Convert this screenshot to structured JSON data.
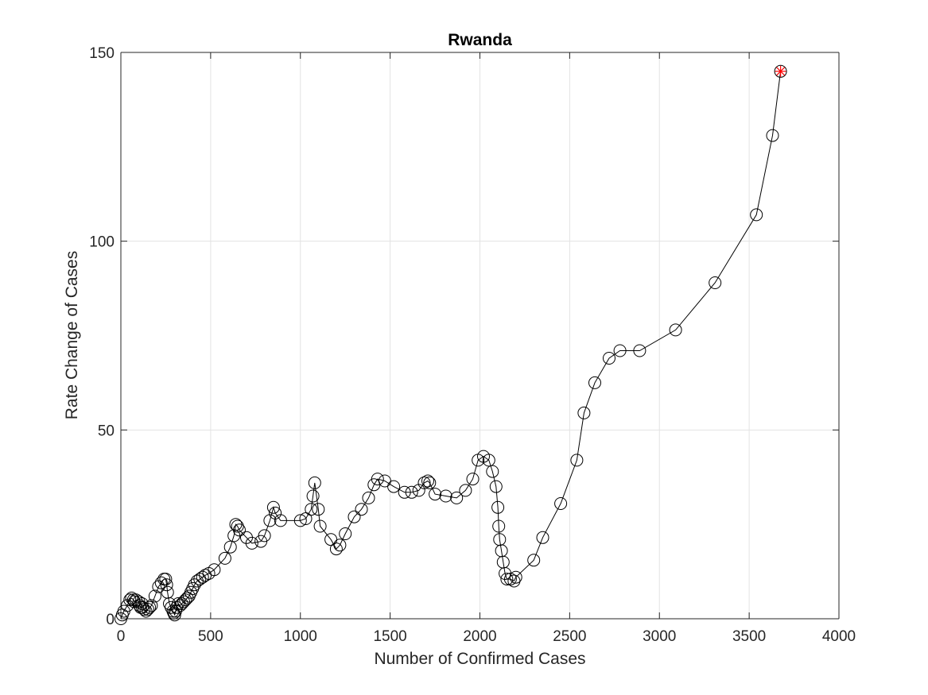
{
  "chart_data": {
    "type": "line",
    "title": "Rwanda",
    "xlabel": "Number of Confirmed Cases",
    "ylabel": "Rate Change of Cases",
    "xlim": [
      0,
      4000
    ],
    "ylim": [
      0,
      150
    ],
    "xticks": [
      "0",
      "500",
      "1000",
      "1500",
      "2000",
      "2500",
      "3000",
      "3500",
      "4000"
    ],
    "yticks": [
      "0",
      "50",
      "100",
      "150"
    ],
    "grid": true,
    "series": [
      {
        "marker": "circle",
        "line_color": "#000000",
        "x": [
          0,
          8,
          17,
          36,
          50,
          60,
          70,
          75,
          84,
          100,
          105,
          110,
          118,
          120,
          130,
          140,
          150,
          160,
          170,
          190,
          210,
          225,
          240,
          250,
          255,
          260,
          270,
          280,
          290,
          295,
          300,
          305,
          310,
          320,
          330,
          340,
          350,
          360,
          370,
          380,
          390,
          400,
          410,
          425,
          440,
          455,
          470,
          490,
          520,
          580,
          610,
          630,
          640,
          650,
          660,
          700,
          730,
          780,
          800,
          830,
          850,
          860,
          890,
          1000,
          1030,
          1060,
          1070,
          1080,
          1100,
          1110,
          1170,
          1200,
          1220,
          1250,
          1300,
          1340,
          1380,
          1410,
          1430,
          1470,
          1520,
          1580,
          1620,
          1660,
          1690,
          1710,
          1720,
          1750,
          1810,
          1870,
          1920,
          1960,
          1990,
          2020,
          2050,
          2070,
          2090,
          2100,
          2105,
          2110,
          2120,
          2130,
          2140,
          2150,
          2170,
          2190,
          2200,
          2300,
          2350,
          2450,
          2540,
          2580,
          2640,
          2720,
          2780,
          2890,
          3090,
          3310,
          3540,
          3630,
          3675
        ],
        "y": [
          0,
          1,
          2,
          3.5,
          5,
          5.5,
          5,
          4.5,
          5,
          4.5,
          3.5,
          3,
          4,
          3,
          2.5,
          2,
          2.5,
          3,
          3.5,
          6,
          8.5,
          9.5,
          10.5,
          10.5,
          9,
          7,
          4,
          3,
          2,
          1.5,
          1,
          2,
          3,
          4,
          3.5,
          4,
          4.5,
          5,
          5.5,
          6,
          7,
          8,
          9,
          10,
          10.5,
          11,
          11.5,
          12,
          13,
          16,
          19,
          22,
          25,
          24.5,
          23.5,
          21.5,
          20,
          20.5,
          22,
          26,
          29.5,
          28,
          26,
          26,
          26.5,
          29,
          32.5,
          36,
          29,
          24.5,
          21,
          18.5,
          19.5,
          22.5,
          27,
          29,
          32,
          35.5,
          37,
          36.5,
          35,
          33.5,
          33.5,
          34,
          36,
          36.5,
          36,
          33,
          32.5,
          32,
          34,
          37,
          42,
          43,
          42,
          39,
          35,
          29.5,
          24.5,
          21,
          18,
          15,
          12,
          10.5,
          10.5,
          10,
          11,
          15.5,
          21.5,
          30.5,
          42,
          54.5,
          62.5,
          69,
          71,
          71,
          76.5,
          89,
          107,
          128,
          145
        ]
      }
    ],
    "highlight": {
      "x": 3675,
      "y": 145,
      "marker": "asterisk",
      "color": "#ff0000"
    }
  }
}
